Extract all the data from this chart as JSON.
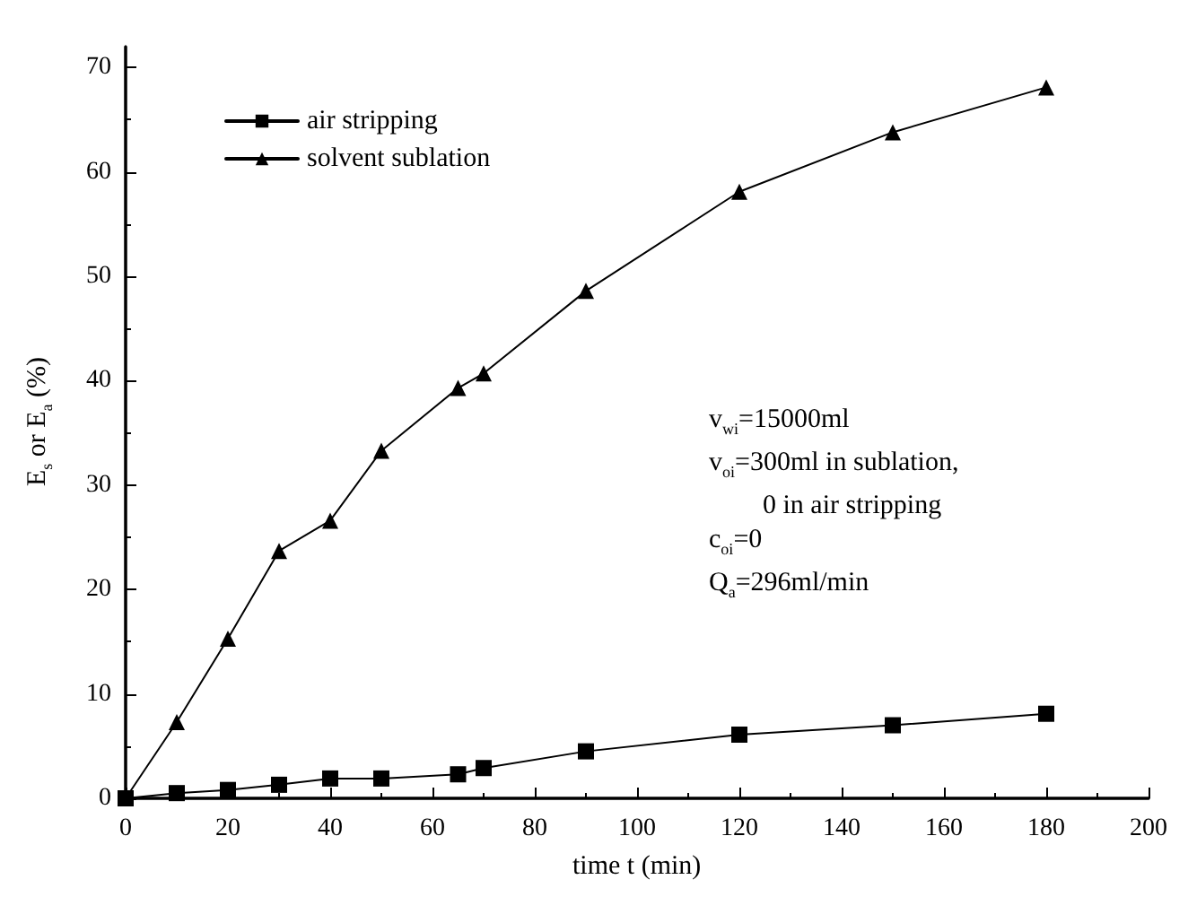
{
  "chart_data": {
    "type": "line",
    "xlabel": "time t (min)",
    "ylabel": "E$_{s}$ or E$_{a}$ (%)",
    "x": [
      0,
      10,
      20,
      30,
      40,
      50,
      65,
      70,
      90,
      120,
      150,
      180
    ],
    "series": [
      {
        "name": "air stripping",
        "color": "#000000",
        "marker": "square",
        "values": [
          0,
          0.5,
          0.8,
          1.3,
          1.9,
          1.9,
          2.3,
          2.9,
          4.5,
          6.1,
          7.0,
          8.1
        ]
      },
      {
        "name": "solvent sublation",
        "color": "#000000",
        "marker": "triangle",
        "values": [
          0,
          7.3,
          15.3,
          23.7,
          26.6,
          33.3,
          39.3,
          40.7,
          48.6,
          58.1,
          63.8,
          68.1
        ]
      }
    ],
    "xlim": [
      0,
      200
    ],
    "xticks": [
      0,
      20,
      40,
      60,
      80,
      100,
      120,
      140,
      160,
      180,
      200
    ],
    "ylim": [
      0,
      72
    ],
    "yticks": [
      0,
      10,
      20,
      30,
      40,
      50,
      60,
      70
    ],
    "legend": "top left",
    "grid": false,
    "line_style": "solid",
    "annotations": [
      "v$_{wi}$=15000ml",
      "v$_{oi}$=300ml in sublation,",
      "0 in air stripping",
      "c$_{oi}$=0",
      "Q$_{a}$=296ml/min"
    ]
  }
}
